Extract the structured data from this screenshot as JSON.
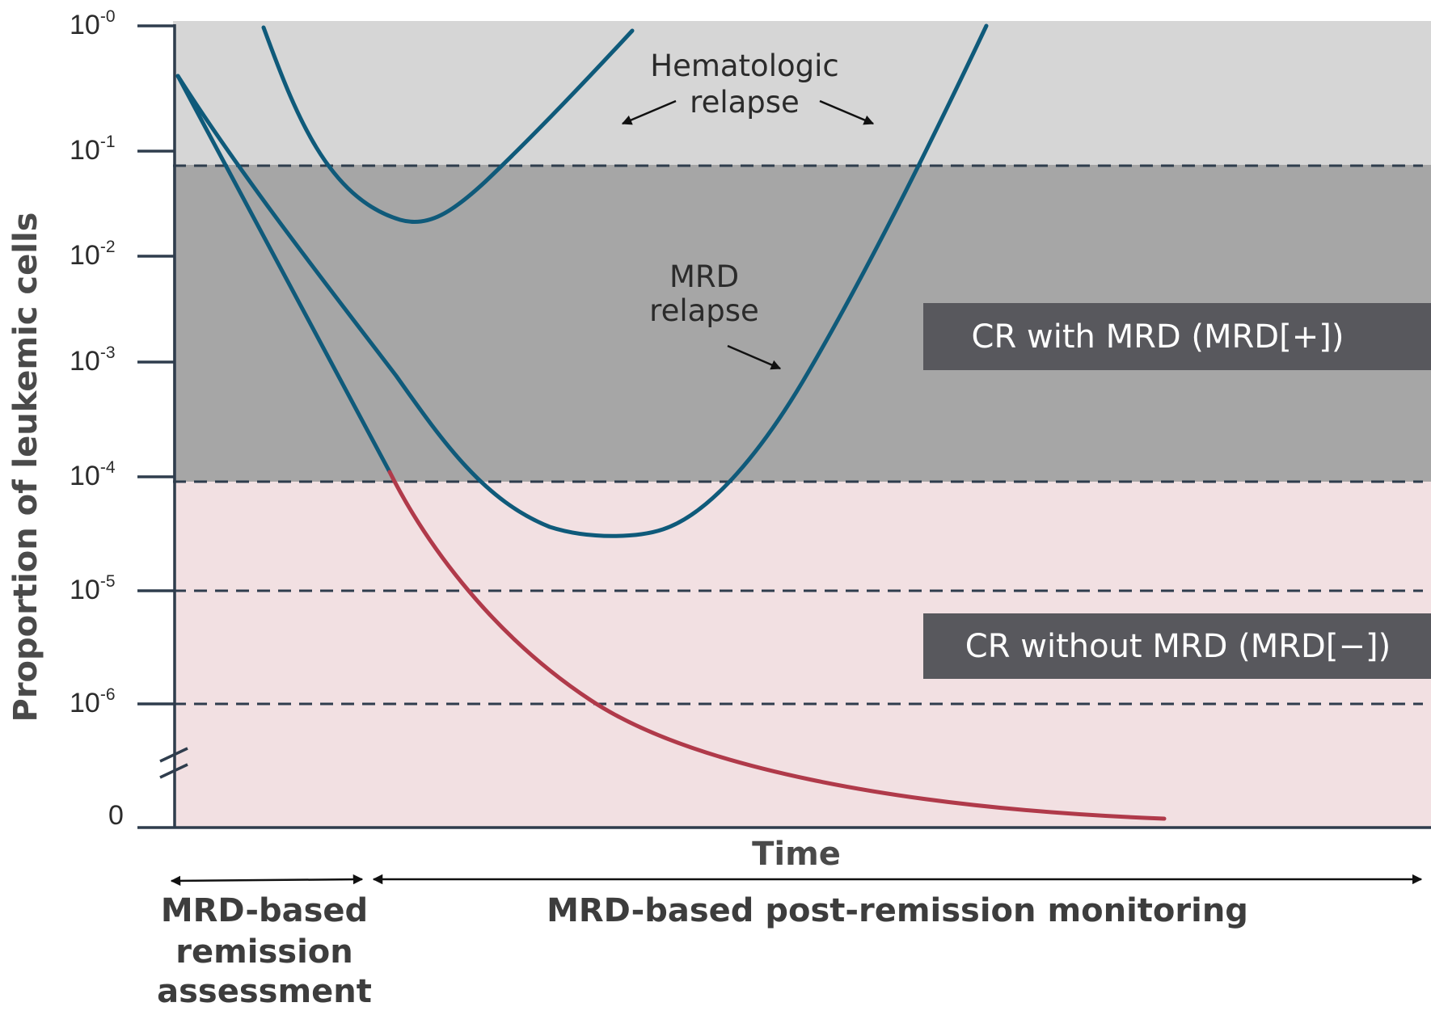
{
  "colors": {
    "relapse_band": "#d6d6d6",
    "mrd_band": "#a6a6a6",
    "remission_band": "#f2e0e2",
    "axis": "#2f3d4d",
    "dashed": "#2f3d4d",
    "relapse_curve": "#0f5a7a",
    "remission_curve": "#b03a4a",
    "label_box": "#58585d"
  },
  "y_axis": {
    "title": "Proportion of leukemic cells",
    "ticks": [
      {
        "base": "10",
        "exp": "-0"
      },
      {
        "base": "10",
        "exp": "-1"
      },
      {
        "base": "10",
        "exp": "-2"
      },
      {
        "base": "10",
        "exp": "-3"
      },
      {
        "base": "10",
        "exp": "-4"
      },
      {
        "base": "10",
        "exp": "-5"
      },
      {
        "base": "10",
        "exp": "-6"
      }
    ],
    "zero_label": "0"
  },
  "x_axis": {
    "title": "Time"
  },
  "annotations": {
    "hematologic_relapse": [
      "Hematologic",
      "relapse"
    ],
    "mrd_relapse": [
      "MRD",
      "relapse"
    ]
  },
  "boxes": {
    "cr_with_mrd": "CR with MRD (MRD[+])",
    "cr_without_mrd": "CR without MRD (MRD[−])"
  },
  "phases": {
    "remission_assessment": [
      "MRD-based",
      "remission",
      "assessment"
    ],
    "post_remission": "MRD-based post-remission monitoring"
  }
}
